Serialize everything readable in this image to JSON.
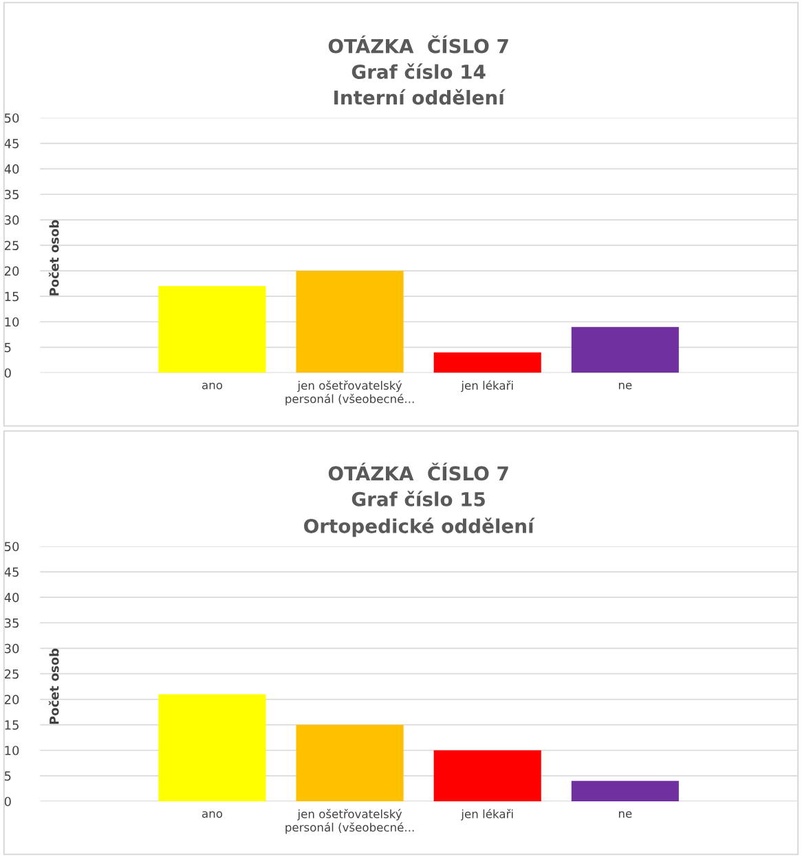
{
  "chart_data": [
    {
      "type": "bar",
      "title": "OTÁZKA  ČÍSLO 7\nGraf číslo 14\nInterní oddělení",
      "ylabel": "Počet osob",
      "categories": [
        "ano",
        "jen ošetřovatelský\npersonál (všeobecné...",
        "jen lékaři",
        "ne"
      ],
      "values": [
        17,
        20,
        4,
        9
      ],
      "colors": [
        "#ffff00",
        "#ffc000",
        "#ff0000",
        "#7030a0"
      ],
      "ylim": [
        0,
        50
      ],
      "yticks": [
        0,
        5,
        10,
        15,
        20,
        25,
        30,
        35,
        40,
        45,
        50
      ],
      "grid": "y",
      "legend": false
    },
    {
      "type": "bar",
      "title": "OTÁZKA  ČÍSLO 7\nGraf číslo 15\nOrtopedické oddělení",
      "ylabel": "Počet osob",
      "categories": [
        "ano",
        "jen ošetřovatelský\npersonál (všeobecné...",
        "jen lékaři",
        "ne"
      ],
      "values": [
        21,
        15,
        10,
        4
      ],
      "colors": [
        "#ffff00",
        "#ffc000",
        "#ff0000",
        "#7030a0"
      ],
      "ylim": [
        0,
        50
      ],
      "yticks": [
        0,
        5,
        10,
        15,
        20,
        25,
        30,
        35,
        40,
        45,
        50
      ],
      "grid": "y",
      "legend": false
    }
  ]
}
